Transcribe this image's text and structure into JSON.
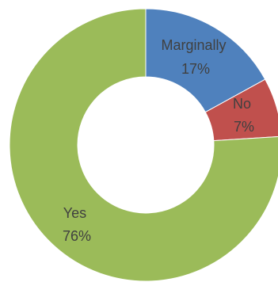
{
  "chart_data": {
    "type": "pie",
    "variant": "doughnut",
    "legend": "none",
    "categories": [
      "Marginally",
      "No",
      "Yes"
    ],
    "values": [
      17,
      7,
      76
    ],
    "labels": [
      {
        "name": "Marginally",
        "value_text": "17%"
      },
      {
        "name": "No",
        "value_text": "7%"
      },
      {
        "name": "Yes",
        "value_text": "76%"
      }
    ],
    "colors": [
      "#4f81bd",
      "#c0504d",
      "#9bbb59"
    ],
    "start_angle_deg": 0,
    "direction": "clockwise",
    "title": ""
  }
}
